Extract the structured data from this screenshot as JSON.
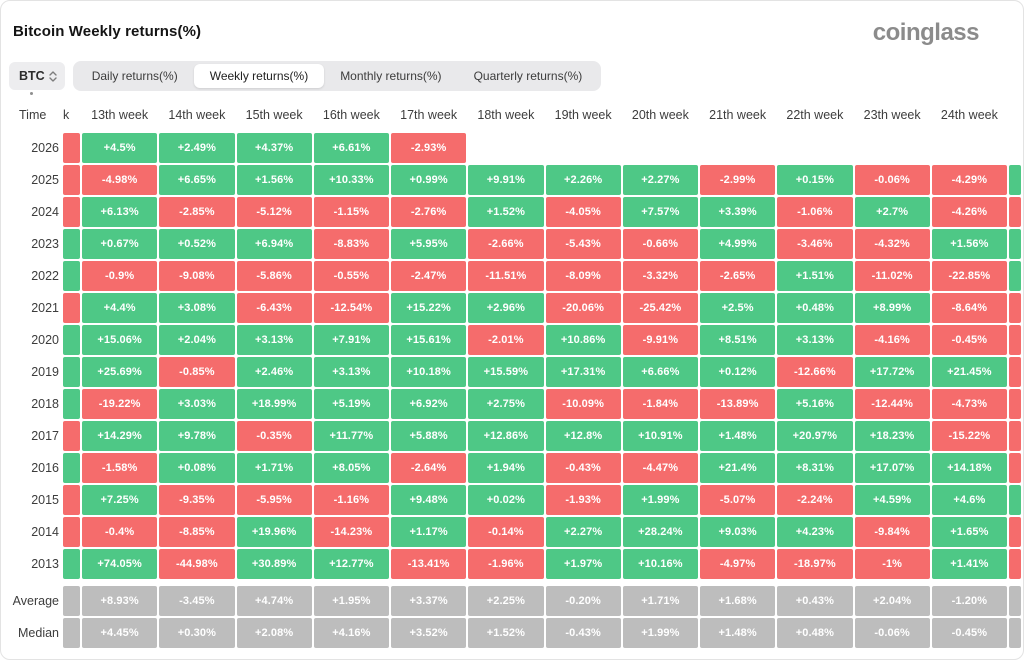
{
  "header": {
    "title": "Bitcoin Weekly returns(%)",
    "logo": "coinglass"
  },
  "controls": {
    "coin_selector": {
      "label": "BTC",
      "icon": "sort-arrows-icon"
    },
    "tabs": [
      {
        "label": "Daily returns(%)",
        "active": false
      },
      {
        "label": "Weekly returns(%)",
        "active": true
      },
      {
        "label": "Monthly returns(%)",
        "active": false
      },
      {
        "label": "Quarterly returns(%)",
        "active": false
      }
    ]
  },
  "colors": {
    "positive": "#4ec886",
    "negative": "#f56c6c",
    "neutral": "#bdbdbd"
  },
  "chart_data": {
    "type": "heatmap",
    "title": "Bitcoin Weekly returns(%)",
    "row_header": "Time",
    "partial_prev_column_label": "k",
    "legend": "green = positive weekly return, red = negative, gray = Average/Median stat rows; left/right edge slivers are truncated 12th/25th week columns",
    "columns": [
      "13th week",
      "14th week",
      "15th week",
      "16th week",
      "17th week",
      "18th week",
      "19th week",
      "20th week",
      "21th week",
      "22th week",
      "23th week",
      "24th week"
    ],
    "rows": [
      {
        "label": "2026",
        "type": "year",
        "left_partial": "negative",
        "right_partial": null,
        "values": [
          "+4.5%",
          "+2.49%",
          "+4.37%",
          "+6.61%",
          "-2.93%",
          null,
          null,
          null,
          null,
          null,
          null,
          null
        ]
      },
      {
        "label": "2025",
        "type": "year",
        "left_partial": "negative",
        "right_partial": "positive",
        "values": [
          "-4.98%",
          "+6.65%",
          "+1.56%",
          "+10.33%",
          "+0.99%",
          "+9.91%",
          "+2.26%",
          "+2.27%",
          "-2.99%",
          "+0.15%",
          "-0.06%",
          "-4.29%"
        ]
      },
      {
        "label": "2024",
        "type": "year",
        "left_partial": "negative",
        "right_partial": "negative",
        "values": [
          "+6.13%",
          "-2.85%",
          "-5.12%",
          "-1.15%",
          "-2.76%",
          "+1.52%",
          "-4.05%",
          "+7.57%",
          "+3.39%",
          "-1.06%",
          "+2.7%",
          "-4.26%"
        ]
      },
      {
        "label": "2023",
        "type": "year",
        "left_partial": "positive",
        "right_partial": "positive",
        "values": [
          "+0.67%",
          "+0.52%",
          "+6.94%",
          "-8.83%",
          "+5.95%",
          "-2.66%",
          "-5.43%",
          "-0.66%",
          "+4.99%",
          "-3.46%",
          "-4.32%",
          "+1.56%"
        ]
      },
      {
        "label": "2022",
        "type": "year",
        "left_partial": "positive",
        "right_partial": "positive",
        "values": [
          "-0.9%",
          "-9.08%",
          "-5.86%",
          "-0.55%",
          "-2.47%",
          "-11.51%",
          "-8.09%",
          "-3.32%",
          "-2.65%",
          "+1.51%",
          "-11.02%",
          "-22.85%"
        ]
      },
      {
        "label": "2021",
        "type": "year",
        "left_partial": "negative",
        "right_partial": "negative",
        "values": [
          "+4.4%",
          "+3.08%",
          "-6.43%",
          "-12.54%",
          "+15.22%",
          "+2.96%",
          "-20.06%",
          "-25.42%",
          "+2.5%",
          "+0.48%",
          "+8.99%",
          "-8.64%"
        ]
      },
      {
        "label": "2020",
        "type": "year",
        "left_partial": "positive",
        "right_partial": "negative",
        "values": [
          "+15.06%",
          "+2.04%",
          "+3.13%",
          "+7.91%",
          "+15.61%",
          "-2.01%",
          "+10.86%",
          "-9.91%",
          "+8.51%",
          "+3.13%",
          "-4.16%",
          "-0.45%"
        ]
      },
      {
        "label": "2019",
        "type": "year",
        "left_partial": "positive",
        "right_partial": "negative",
        "values": [
          "+25.69%",
          "-0.85%",
          "+2.46%",
          "+3.13%",
          "+10.18%",
          "+15.59%",
          "+17.31%",
          "+6.66%",
          "+0.12%",
          "-12.66%",
          "+17.72%",
          "+21.45%"
        ]
      },
      {
        "label": "2018",
        "type": "year",
        "left_partial": "positive",
        "right_partial": "negative",
        "values": [
          "-19.22%",
          "+3.03%",
          "+18.99%",
          "+5.19%",
          "+6.92%",
          "+2.75%",
          "-10.09%",
          "-1.84%",
          "-13.89%",
          "+5.16%",
          "-12.44%",
          "-4.73%"
        ]
      },
      {
        "label": "2017",
        "type": "year",
        "left_partial": "negative",
        "right_partial": "negative",
        "values": [
          "+14.29%",
          "+9.78%",
          "-0.35%",
          "+11.77%",
          "+5.88%",
          "+12.86%",
          "+12.8%",
          "+10.91%",
          "+1.48%",
          "+20.97%",
          "+18.23%",
          "-15.22%"
        ]
      },
      {
        "label": "2016",
        "type": "year",
        "left_partial": "positive",
        "right_partial": "negative",
        "values": [
          "-1.58%",
          "+0.08%",
          "+1.71%",
          "+8.05%",
          "-2.64%",
          "+1.94%",
          "-0.43%",
          "-4.47%",
          "+21.4%",
          "+8.31%",
          "+17.07%",
          "+14.18%"
        ]
      },
      {
        "label": "2015",
        "type": "year",
        "left_partial": "negative",
        "right_partial": "positive",
        "values": [
          "+7.25%",
          "-9.35%",
          "-5.95%",
          "-1.16%",
          "+9.48%",
          "+0.02%",
          "-1.93%",
          "+1.99%",
          "-5.07%",
          "-2.24%",
          "+4.59%",
          "+4.6%"
        ]
      },
      {
        "label": "2014",
        "type": "year",
        "left_partial": "negative",
        "right_partial": "negative",
        "values": [
          "-0.4%",
          "-8.85%",
          "+19.96%",
          "-14.23%",
          "+1.17%",
          "-0.14%",
          "+2.27%",
          "+28.24%",
          "+9.03%",
          "+4.23%",
          "-9.84%",
          "+1.65%"
        ]
      },
      {
        "label": "2013",
        "type": "year",
        "left_partial": "positive",
        "right_partial": "negative",
        "values": [
          "+74.05%",
          "-44.98%",
          "+30.89%",
          "+12.77%",
          "-13.41%",
          "-1.96%",
          "+1.97%",
          "+10.16%",
          "-4.97%",
          "-18.97%",
          "-1%",
          "+1.41%"
        ]
      },
      {
        "label": "Average",
        "type": "stat",
        "left_partial": "neutral",
        "right_partial": "neutral",
        "values": [
          "+8.93%",
          "-3.45%",
          "+4.74%",
          "+1.95%",
          "+3.37%",
          "+2.25%",
          "-0.20%",
          "+1.71%",
          "+1.68%",
          "+0.43%",
          "+2.04%",
          "-1.20%"
        ]
      },
      {
        "label": "Median",
        "type": "stat",
        "left_partial": "neutral",
        "right_partial": "neutral",
        "values": [
          "+4.45%",
          "+0.30%",
          "+2.08%",
          "+4.16%",
          "+3.52%",
          "+1.52%",
          "-0.43%",
          "+1.99%",
          "+1.48%",
          "+0.48%",
          "-0.06%",
          "-0.45%"
        ]
      }
    ]
  }
}
